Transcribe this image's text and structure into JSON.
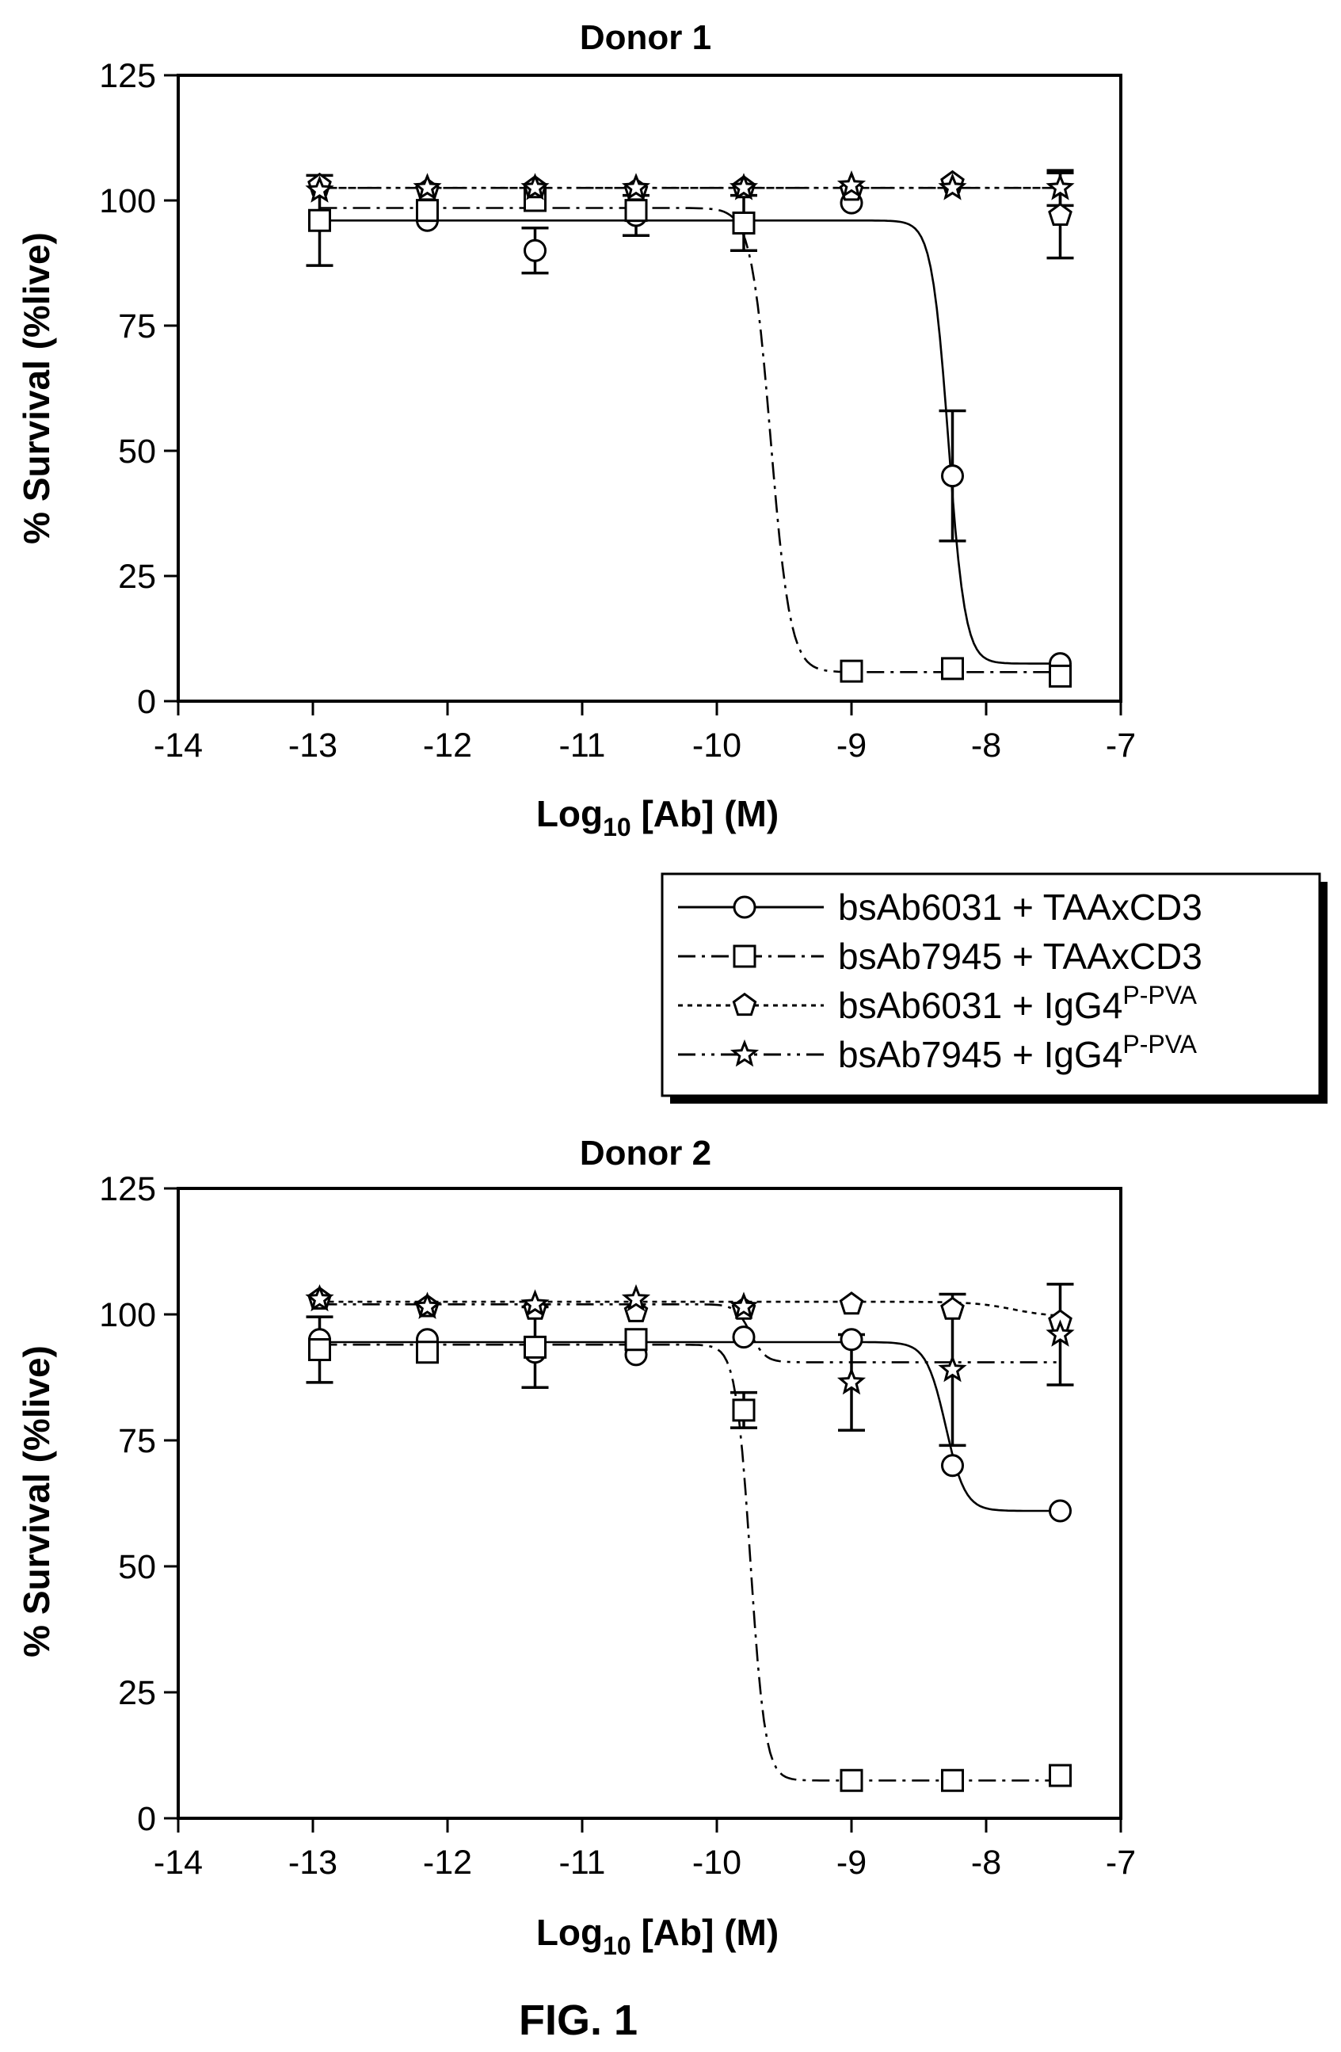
{
  "figure_label": "FIG. 1",
  "legend": {
    "entries": [
      {
        "label": "bsAb6031 + TAAxCD3",
        "label_sup": "",
        "marker": "circle",
        "dash": ""
      },
      {
        "label": "bsAb7945 + TAAxCD3",
        "label_sup": "",
        "marker": "square",
        "dash": "22,8,4,8"
      },
      {
        "label": "bsAb6031 + IgG4",
        "label_sup": "P-PVA",
        "marker": "pentagon",
        "dash": "6,6"
      },
      {
        "label": "bsAb7945 + IgG4",
        "label_sup": "P-PVA",
        "marker": "star",
        "dash": "22,8,4,8,4,8"
      }
    ]
  },
  "chart_data": [
    {
      "type": "scatter",
      "title": "Donor 1",
      "xlabel_main": "Log",
      "xlabel_sub": "10",
      "xlabel_rest": " [Ab] (M)",
      "ylabel": "% Survival (%live)",
      "xlim": [
        -14,
        -7
      ],
      "ylim": [
        0,
        125
      ],
      "xticks": [
        -14,
        -13,
        -12,
        -11,
        -10,
        -9,
        -8,
        -7
      ],
      "yticks": [
        0,
        25,
        50,
        75,
        100,
        125
      ],
      "grid": false,
      "series": [
        {
          "name": "bsAb6031 + TAAxCD3",
          "marker": "circle",
          "x": [
            -12.95,
            -12.15,
            -11.35,
            -10.6,
            -9.8,
            -9.0,
            -8.25,
            -7.45
          ],
          "y": [
            96,
            96,
            90,
            97,
            95.5,
            99.5,
            45,
            7.5
          ],
          "err": [
            9,
            0,
            4.5,
            4,
            0,
            0,
            13,
            0
          ],
          "fit": {
            "top": 96,
            "bottom": 7.5,
            "log_ec50": -8.28,
            "hill": 7
          }
        },
        {
          "name": "bsAb7945 + TAAxCD3",
          "marker": "square",
          "x": [
            -12.95,
            -12.15,
            -11.35,
            -10.6,
            -9.8,
            -9.0,
            -8.25,
            -7.45
          ],
          "y": [
            96,
            98,
            100,
            98,
            95.5,
            6,
            6.5,
            5
          ],
          "err": [
            0,
            0,
            0,
            0,
            5.5,
            0,
            0,
            0
          ],
          "fit": {
            "top": 98.5,
            "bottom": 5.8,
            "log_ec50": -9.6,
            "hill": 6
          }
        },
        {
          "name": "bsAb6031 + IgG4P-PVA",
          "marker": "pentagon",
          "x": [
            -12.95,
            -12.15,
            -11.35,
            -10.6,
            -9.8,
            -9.0,
            -8.25,
            -7.45
          ],
          "y": [
            103,
            102,
            102.5,
            102,
            102.5,
            102,
            103.5,
            97
          ],
          "err": [
            0,
            0,
            0,
            0,
            0,
            0,
            0,
            8.5
          ],
          "fit": {
            "top": 102.5,
            "bottom": 102.5,
            "log_ec50": -10,
            "hill": 1
          }
        },
        {
          "name": "bsAb7945 + IgG4P-PVA",
          "marker": "star",
          "x": [
            -12.95,
            -12.15,
            -11.35,
            -10.6,
            -9.8,
            -9.0,
            -8.25,
            -7.45
          ],
          "y": [
            102,
            102.5,
            102.5,
            102.5,
            102.5,
            103,
            102.5,
            102.5
          ],
          "err": [
            0,
            0,
            0,
            0,
            0,
            0,
            0,
            3.5
          ],
          "fit": {
            "top": 102.5,
            "bottom": 102.5,
            "log_ec50": -10,
            "hill": 1
          }
        }
      ]
    },
    {
      "type": "scatter",
      "title": "Donor 2",
      "xlabel_main": "Log",
      "xlabel_sub": "10",
      "xlabel_rest": " [Ab] (M)",
      "ylabel": "% Survival (%live)",
      "xlim": [
        -14,
        -7
      ],
      "ylim": [
        0,
        125
      ],
      "xticks": [
        -14,
        -13,
        -12,
        -11,
        -10,
        -9,
        -8,
        -7
      ],
      "yticks": [
        0,
        25,
        50,
        75,
        100,
        125
      ],
      "grid": false,
      "series": [
        {
          "name": "bsAb6031 + TAAxCD3",
          "marker": "circle",
          "x": [
            -12.95,
            -12.15,
            -11.35,
            -10.6,
            -9.8,
            -9.0,
            -8.25,
            -7.45
          ],
          "y": [
            95,
            95,
            92.5,
            92,
            95.5,
            95,
            70,
            61
          ],
          "err": [
            0,
            0,
            0,
            0,
            0,
            0,
            0,
            0
          ],
          "fit": {
            "top": 94.5,
            "bottom": 61,
            "log_ec50": -8.3,
            "hill": 6
          }
        },
        {
          "name": "bsAb7945 + TAAxCD3",
          "marker": "square",
          "x": [
            -12.95,
            -12.15,
            -11.35,
            -10.6,
            -9.8,
            -9.0,
            -8.25,
            -7.45
          ],
          "y": [
            93,
            92.5,
            93.5,
            95,
            81,
            7.5,
            7.5,
            8.5
          ],
          "err": [
            6.5,
            0,
            8,
            0,
            3.5,
            0,
            0,
            0
          ],
          "fit": {
            "top": 94,
            "bottom": 7.5,
            "log_ec50": -9.75,
            "hill": 8
          }
        },
        {
          "name": "bsAb6031 + IgG4P-PVA",
          "marker": "pentagon",
          "x": [
            -12.95,
            -12.15,
            -11.35,
            -10.6,
            -9.8,
            -9.0,
            -8.25,
            -7.45
          ],
          "y": [
            103,
            101.5,
            101,
            100.5,
            101,
            102,
            101,
            98.5
          ],
          "err": [
            0,
            0,
            0,
            0,
            0,
            0,
            0,
            0
          ],
          "fit": {
            "top": 102.5,
            "bottom": 99.5,
            "log_ec50": -7.8,
            "hill": 3
          }
        },
        {
          "name": "bsAb7945 + IgG4P-PVA",
          "marker": "star",
          "x": [
            -12.95,
            -12.15,
            -11.35,
            -10.6,
            -9.8,
            -9.0,
            -8.25,
            -7.45
          ],
          "y": [
            103,
            101.5,
            102,
            103,
            101.5,
            86.5,
            89,
            96
          ],
          "err": [
            0,
            0,
            0,
            0,
            0,
            9.5,
            15,
            10
          ],
          "fit": {
            "top": 102,
            "bottom": 90.5,
            "log_ec50": -9.75,
            "hill": 8
          }
        }
      ]
    }
  ]
}
